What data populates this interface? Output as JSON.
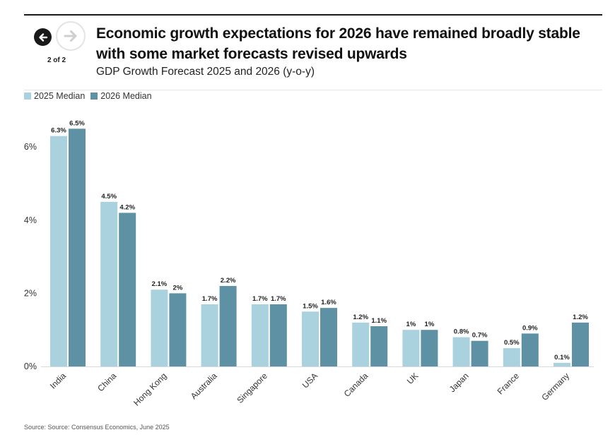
{
  "header": {
    "title": "Economic growth expectations for 2026 have remained broadly stable with some market forecasts revised upwards",
    "subtitle": "GDP Growth Forecast 2025 and 2026 (y-o-y)",
    "pager": "2 of 2",
    "prev_icon": "arrow-left-icon",
    "next_icon": "arrow-right-icon"
  },
  "footer": {
    "source": "Source: Source: Consensus Economics, June 2025"
  },
  "colors": {
    "series_2025": "#a9d1de",
    "series_2026": "#5d91a3"
  },
  "chart_data": {
    "type": "bar",
    "title": "GDP Growth Forecast 2025 and 2026 (y-o-y)",
    "categories": [
      "India",
      "China",
      "Hong Kong",
      "Australia",
      "Singapore",
      "USA",
      "Canada",
      "UK",
      "Japan",
      "France",
      "Germany"
    ],
    "series": [
      {
        "name": "2025 Median",
        "values": [
          6.3,
          4.5,
          2.1,
          1.7,
          1.7,
          1.5,
          1.2,
          1.0,
          0.8,
          0.5,
          0.1
        ],
        "labels": [
          "6.3%",
          "4.5%",
          "2.1%",
          "1.7%",
          "1.7%",
          "1.5%",
          "1.2%",
          "1%",
          "0.8%",
          "0.5%",
          "0.1%"
        ]
      },
      {
        "name": "2026 Median",
        "values": [
          6.5,
          4.2,
          2.0,
          2.2,
          1.7,
          1.6,
          1.1,
          1.0,
          0.7,
          0.9,
          1.2
        ],
        "labels": [
          "6.5%",
          "4.2%",
          "2%",
          "2.2%",
          "1.7%",
          "1.6%",
          "1.1%",
          "1%",
          "0.7%",
          "0.9%",
          "1.2%"
        ]
      }
    ],
    "yticks": [
      "0%",
      "2%",
      "4%",
      "6%"
    ],
    "ytick_values": [
      0,
      2,
      4,
      6
    ],
    "ylim": [
      0,
      6.8
    ],
    "grid": false,
    "legend": "top-left"
  }
}
